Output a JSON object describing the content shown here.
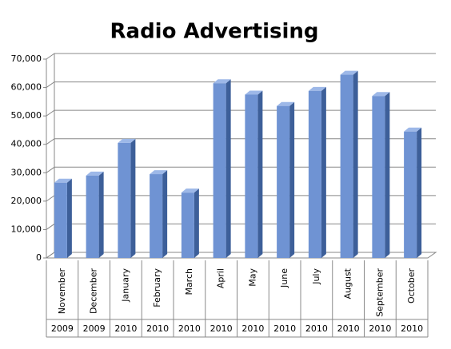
{
  "chart_data": {
    "type": "bar",
    "title": "Radio Advertising",
    "categories": [
      "November",
      "December",
      "January",
      "February",
      "March",
      "April",
      "May",
      "June",
      "July",
      "August",
      "September",
      "October"
    ],
    "years": [
      "2009",
      "2009",
      "2010",
      "2010",
      "2010",
      "2010",
      "2010",
      "2010",
      "2010",
      "2010",
      "2010",
      "2010"
    ],
    "values": [
      26500,
      29000,
      40500,
      29500,
      23000,
      61500,
      57500,
      53500,
      58800,
      64500,
      57000,
      44500
    ],
    "color": "#6f93d3",
    "ylim": [
      0,
      70000
    ],
    "yticks": [
      0,
      {
        "value": 10000,
        "label": "10,000"
      },
      {
        "value": 20000,
        "label": "20,000"
      },
      {
        "value": 30000,
        "label": "30,000"
      },
      {
        "value": 40000,
        "label": "40,000"
      },
      {
        "value": 50000,
        "label": "50,000"
      },
      {
        "value": 60000,
        "label": "60,000"
      },
      {
        "value": 70000,
        "label": "70,000"
      }
    ],
    "grid": true
  }
}
